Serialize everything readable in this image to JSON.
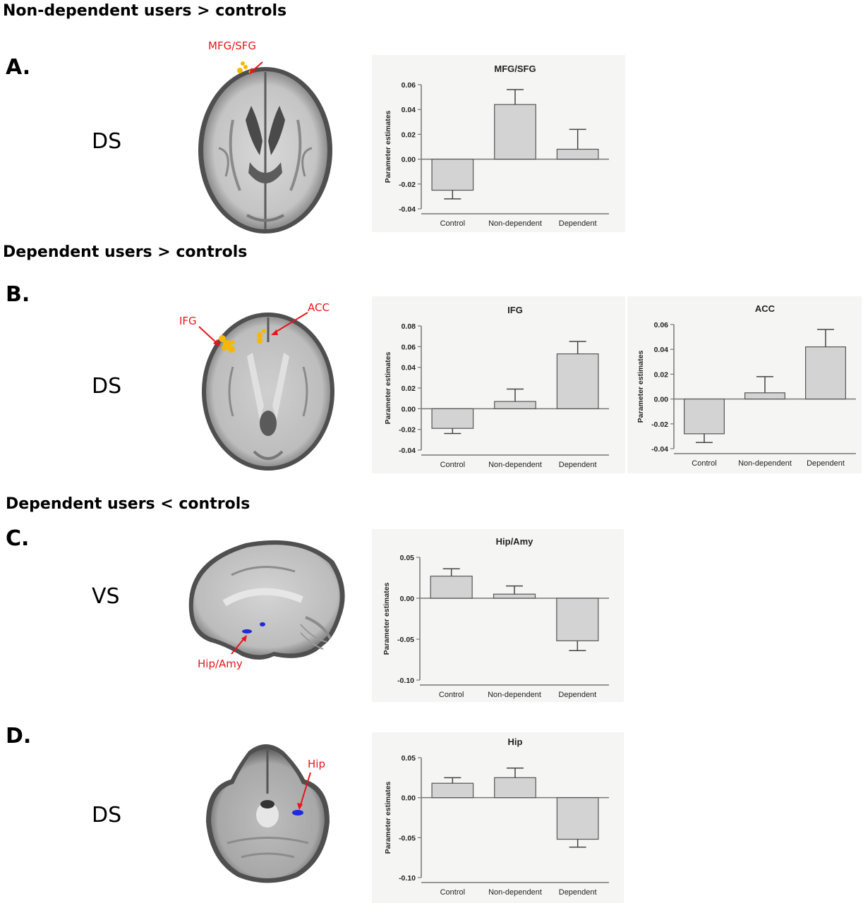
{
  "sections": [
    {
      "id": "A",
      "title": "Non-dependent users > controls",
      "letter": "A.",
      "condition": "DS",
      "region_labels": [
        "MFG/SFG"
      ]
    },
    {
      "id": "B",
      "title": "Dependent users > controls",
      "letter": "B.",
      "condition": "DS",
      "region_labels": [
        "IFG",
        "ACC"
      ]
    },
    {
      "id": "C",
      "title": "Dependent users < controls",
      "letter": "C.",
      "condition": "VS",
      "region_labels": [
        "Hip/Amy"
      ]
    },
    {
      "id": "D",
      "title": "",
      "letter": "D.",
      "condition": "DS",
      "region_labels": [
        "Hip"
      ]
    }
  ],
  "colors": {
    "bar": "#d3d3d3",
    "bar_stroke": "#555555",
    "axis": "#777777",
    "panel_bg": "#f5f5f4",
    "label_red": "#e8141b",
    "activation_warm": "#f5b800",
    "activation_cool": "#1f2bd6"
  },
  "chart_data": [
    {
      "type": "bar",
      "title": "MFG/SFG",
      "ylabel": "Parameter estimates",
      "categories": [
        "Control",
        "Non-dependent",
        "Dependent"
      ],
      "values": [
        -0.025,
        0.044,
        0.008
      ],
      "errors": [
        0.007,
        0.012,
        0.016
      ],
      "ylim": [
        -0.04,
        0.06
      ],
      "yticks": [
        "0.06",
        "0.04",
        "0.02",
        "0.00",
        "-0.02",
        "-0.04"
      ],
      "ytick_values": [
        0.06,
        0.04,
        0.02,
        0.0,
        -0.02,
        -0.04
      ]
    },
    {
      "type": "bar",
      "title": "IFG",
      "ylabel": "Parameter estimates",
      "categories": [
        "Control",
        "Non-dependent",
        "Dependent"
      ],
      "values": [
        -0.019,
        0.007,
        0.053
      ],
      "errors": [
        0.005,
        0.012,
        0.012
      ],
      "ylim": [
        -0.04,
        0.08
      ],
      "yticks": [
        "0.08",
        "0.06",
        "0.04",
        "0.02",
        "0.00",
        "-0.02",
        "-0.04"
      ],
      "ytick_values": [
        0.08,
        0.06,
        0.04,
        0.02,
        0.0,
        -0.02,
        -0.04
      ]
    },
    {
      "type": "bar",
      "title": "ACC",
      "ylabel": "Parameter estimates",
      "categories": [
        "Control",
        "Non-dependent",
        "Dependent"
      ],
      "values": [
        -0.028,
        0.005,
        0.042
      ],
      "errors": [
        0.007,
        0.013,
        0.014
      ],
      "ylim": [
        -0.04,
        0.06
      ],
      "yticks": [
        "0.06",
        "0.04",
        "0.02",
        "0.00",
        "-0.02",
        "-0.04"
      ],
      "ytick_values": [
        0.06,
        0.04,
        0.02,
        0.0,
        -0.02,
        -0.04
      ]
    },
    {
      "type": "bar",
      "title": "Hip/Amy",
      "ylabel": "Parameter estimates",
      "categories": [
        "Control",
        "Non-dependent",
        "Dependent"
      ],
      "values": [
        0.027,
        0.005,
        -0.052
      ],
      "errors": [
        0.009,
        0.01,
        0.012
      ],
      "ylim": [
        -0.1,
        0.05
      ],
      "yticks": [
        "0.05",
        "0.00",
        "-0.05",
        "-0.10"
      ],
      "ytick_values": [
        0.05,
        0.0,
        -0.05,
        -0.1
      ]
    },
    {
      "type": "bar",
      "title": "Hip",
      "ylabel": "Parameter estimates",
      "categories": [
        "Control",
        "Non-dependent",
        "Dependent"
      ],
      "values": [
        0.018,
        0.025,
        -0.052
      ],
      "errors": [
        0.007,
        0.012,
        0.01
      ],
      "ylim": [
        -0.1,
        0.05
      ],
      "yticks": [
        "0.05",
        "0.00",
        "-0.05",
        "-0.10"
      ],
      "ytick_values": [
        0.05,
        0.0,
        -0.05,
        -0.1
      ]
    }
  ]
}
